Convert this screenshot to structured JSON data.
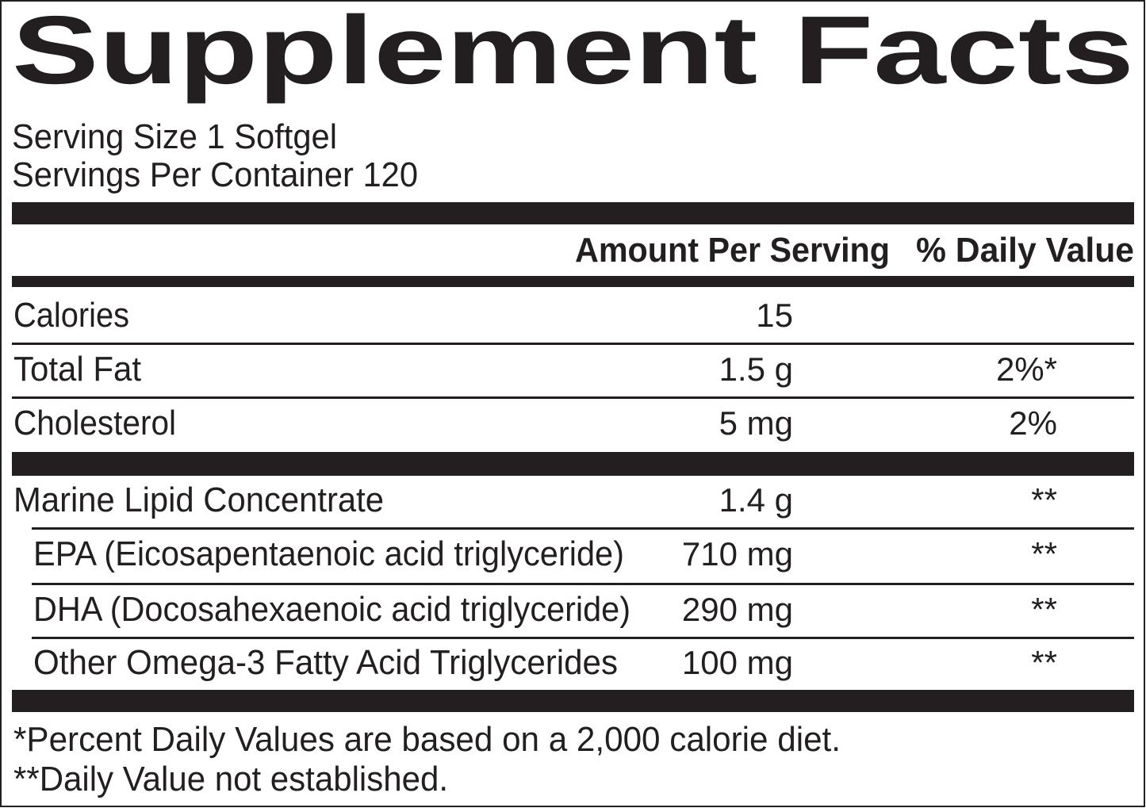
{
  "title": "Supplement Facts",
  "serving_size": "Serving Size 1 Softgel",
  "servings_per_container": "Servings Per Container 120",
  "header": {
    "amount": "Amount Per Serving",
    "daily_value": "% Daily Value"
  },
  "rows": [
    {
      "name": "Calories",
      "amount": "15"
    },
    {
      "name": "Total Fat",
      "amount": "1.5 g",
      "daily_value": "2%*"
    },
    {
      "name": "Cholesterol",
      "amount": "5 mg",
      "daily_value": "2%"
    },
    {
      "name": "Marine Lipid Concentrate",
      "amount": "1.4 g",
      "daily_value": "**"
    },
    {
      "name": "EPA (Eicosapentaenoic acid triglyceride)",
      "amount": "710 mg",
      "daily_value": "**"
    },
    {
      "name": "DHA (Docosahexaenoic acid triglyceride)",
      "amount": "290 mg",
      "daily_value": "**"
    },
    {
      "name": "Other Omega-3 Fatty Acid Triglycerides",
      "amount": "100 mg",
      "daily_value": "**"
    }
  ],
  "footnotes": [
    "*Percent Daily Values are based on a 2,000 calorie diet.",
    "**Daily Value not established."
  ]
}
